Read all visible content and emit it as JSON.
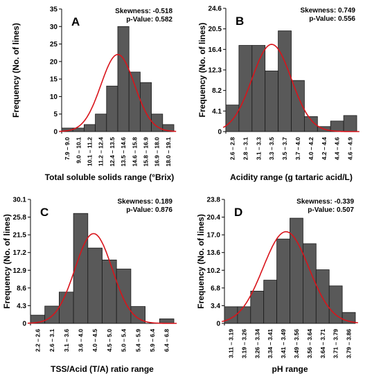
{
  "chart_data": [
    {
      "type": "bar",
      "panel_letter": "A",
      "xlabel": "Total soluble solids range (°Brix)",
      "ylabel": "Frequency (No. of lines)",
      "ylim": [
        0,
        35
      ],
      "yticks": [
        "0",
        "5",
        "10",
        "15",
        "20",
        "25",
        "30",
        "35"
      ],
      "categories": [
        "7.9 – 9.0",
        "9.0 – 10.1",
        "10.1 – 11.2",
        "11.2 – 12.4",
        "12.4 – 13.5",
        "13.5 – 14.6",
        "14.6 – 15.8",
        "15.8 – 16.9",
        "16.9 – 18.0",
        "18.0 – 19.1"
      ],
      "values": [
        1,
        1,
        2,
        5,
        13,
        30,
        17,
        14,
        5,
        2
      ],
      "curve": {
        "mean_index": 5.0,
        "sd_index": 1.5,
        "peak": 22
      },
      "stats": [
        "Skewness: -0.518",
        "p-Value: 0.582"
      ]
    },
    {
      "type": "bar",
      "panel_letter": "B",
      "xlabel": "Acidity range (g tartaric acid/L)",
      "ylabel": "Frequency (No. of lines)",
      "ylim": [
        0,
        24.6
      ],
      "yticks": [
        "0",
        "4.1",
        "8.2",
        "12.3",
        "16.4",
        "20.5",
        "24.6"
      ],
      "categories": [
        "2.6 – 2.8",
        "2.8 – 3.1",
        "3.1 – 3.3",
        "3.3 – 3.5",
        "3.5 – 3.7",
        "3.7 – 4.0",
        "4.0 – 4.2",
        "4.2 – 4.4",
        "4.4 – 4.6",
        "4.6 – 4.9"
      ],
      "values": [
        5.3,
        17.2,
        17.2,
        12.1,
        20.1,
        10.2,
        3.0,
        1.0,
        2.1,
        3.2
      ],
      "curve": {
        "mean_index": 3.5,
        "sd_index": 1.5,
        "peak": 17.4
      },
      "stats": [
        "Skewness: 0.749",
        "p-Value: 0.556"
      ]
    },
    {
      "type": "bar",
      "panel_letter": "C",
      "xlabel": "TSS/Acid (T/A) ratio range",
      "ylabel": "Frequency (No. of lines)",
      "ylim": [
        0,
        30.1
      ],
      "yticks": [
        "0",
        "4.3",
        "8.6",
        "12.9",
        "17.2",
        "21.5",
        "25.8",
        "30.1"
      ],
      "categories": [
        "2.2 – 2.6",
        "2.6 – 3.1",
        "3.1 – 3.6",
        "3.6 – 4.0",
        "4.0 – 4.5",
        "4.5 – 5.0",
        "5.0 – 5.4",
        "5.4 – 5.9",
        "5.9 – 6.4",
        "6.4 – 6.8"
      ],
      "values": [
        2.0,
        4.2,
        7.6,
        26.7,
        18.3,
        15.4,
        13.2,
        4.1,
        0.0,
        1.1
      ],
      "curve": {
        "mean_index": 4.4,
        "sd_index": 1.3,
        "peak": 21.8
      },
      "stats": [
        "Skewness: 0.189",
        "p-Value: 0.876"
      ]
    },
    {
      "type": "bar",
      "panel_letter": "D",
      "xlabel": "pH range",
      "ylabel": "Frequency (No. of lines)",
      "ylim": [
        0,
        23.8
      ],
      "yticks": [
        "0",
        "3.4",
        "6.8",
        "10.2",
        "13.6",
        "17.0",
        "20.4",
        "23.8"
      ],
      "categories": [
        "3.11 – 3.19",
        "3.19 – 3.26",
        "3.26 – 3.34",
        "3.34 – 3.41",
        "3.41 – 3.49",
        "3.49 – 3.56",
        "3.56 – 3.64",
        "3.64 – 3.71",
        "3.71 – 3.79",
        "3.79 – 3.86"
      ],
      "values": [
        3.2,
        3.2,
        6.2,
        8.3,
        16.2,
        20.2,
        15.3,
        10.3,
        7.2,
        2.1
      ],
      "curve": {
        "mean_index": 4.7,
        "sd_index": 1.75,
        "peak": 17.6
      },
      "stats": [
        "Skewness: -0.339",
        "p-Value: 0.507"
      ]
    }
  ],
  "colors": {
    "bar_fill": "#595959",
    "bar_stroke": "#1a1a1a",
    "curve": "#d9141b",
    "text": "#000000"
  }
}
